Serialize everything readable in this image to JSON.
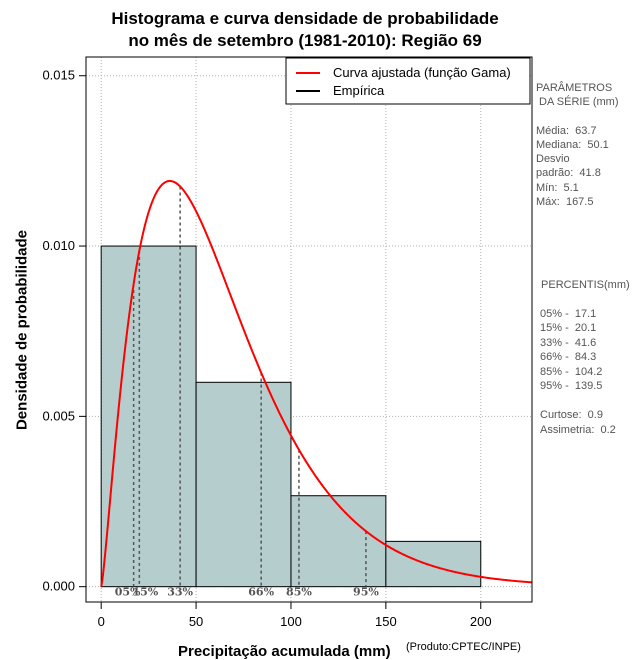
{
  "chart_data": {
    "type": "histogram",
    "title_line1": "Histograma e curva densidade de probabilidade",
    "title_line2": "no mês de setembro (1981-2010): Região 69",
    "xlabel": "Precipitação acumulada (mm)",
    "ylabel": "Densidade de probabilidade",
    "credit": "(Produto:CPTEC/INPE)",
    "xlim": [
      -8,
      227
    ],
    "ylim": [
      -0.00045,
      0.01555
    ],
    "x_ticks": [
      0,
      50,
      100,
      150,
      200
    ],
    "y_ticks": [
      0.0,
      0.005,
      0.01,
      0.015
    ],
    "y_tick_labels": [
      "0.000",
      "0.005",
      "0.010",
      "0.015"
    ],
    "bins": [
      {
        "start": 0,
        "end": 50,
        "density": 0.01
      },
      {
        "start": 50,
        "end": 100,
        "density": 0.006
      },
      {
        "start": 100,
        "end": 150,
        "density": 0.00267
      },
      {
        "start": 150,
        "end": 200,
        "density": 0.00133
      }
    ],
    "gamma_fit": {
      "shape": 2.32,
      "scale": 27.4
    },
    "series": [
      {
        "name": "Curva ajustada (função Gama)",
        "color": "#ff0000"
      },
      {
        "name": "Empírica",
        "color": "#000000"
      }
    ],
    "percentile_markers": [
      {
        "label": "05%",
        "value": 17.1
      },
      {
        "label": "15%",
        "value": 20.1
      },
      {
        "label": "33%",
        "value": 41.6
      },
      {
        "label": "66%",
        "value": 84.3
      },
      {
        "label": "85%",
        "value": 104.2
      },
      {
        "label": "95%",
        "value": 139.5
      }
    ],
    "grid": true,
    "legend": "top-right"
  },
  "parameters": {
    "heading_line1": "PARÂMETROS",
    "heading_line2": " DA SÉRIE (mm)",
    "media": "Média:  63.7",
    "mediana": "Mediana:  50.1",
    "desvio_line1": "Desvio",
    "desvio_line2": "padrão:  41.8",
    "min": "Mín:  5.1",
    "max": "Máx:  167.5"
  },
  "percentis": {
    "heading": " PERCENTIS(mm)",
    "p05": "05% -  17.1",
    "p15": "15% -  20.1",
    "p33": "33% -  41.6",
    "p66": "66% -  84.3",
    "p85": "85% -  104.2",
    "p95": "95% -  139.5",
    "curtose": "Curtose:  0.9",
    "assimetria": "Assimetria:  0.2"
  },
  "colors": {
    "bar_fill": "#b5cdcd",
    "curve": "#ff0000",
    "grid": "#b0b0b0",
    "percentile_line": "#555555"
  }
}
